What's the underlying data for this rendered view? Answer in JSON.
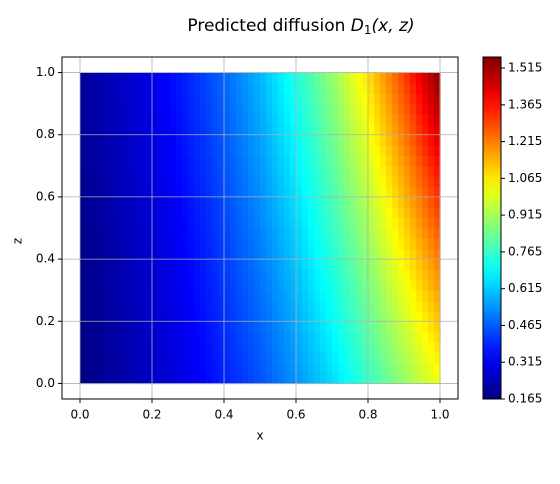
{
  "chart_data": {
    "type": "heatmap",
    "title_prefix": "Predicted diffusion ",
    "title_math": {
      "symbol": "D",
      "subscript": "1",
      "args": "(x, z)"
    },
    "xlabel": "x",
    "ylabel": "z",
    "xlim": [
      -0.05,
      1.05
    ],
    "ylim": [
      -0.05,
      1.05
    ],
    "x_ticks": [
      0.0,
      0.2,
      0.4,
      0.6,
      0.8,
      1.0
    ],
    "y_ticks": [
      0.0,
      0.2,
      0.4,
      0.6,
      0.8,
      1.0
    ],
    "x_tick_labels": [
      "0.0",
      "0.2",
      "0.4",
      "0.6",
      "0.8",
      "1.0"
    ],
    "y_tick_labels": [
      "0.0",
      "0.2",
      "0.4",
      "0.6",
      "0.8",
      "1.0"
    ],
    "grid": true,
    "data_domain": {
      "x": [
        0.0,
        1.0
      ],
      "z": [
        0.0,
        1.0
      ]
    },
    "colorbar": {
      "colormap": "jet",
      "vmin": 0.165,
      "vmax": 1.56,
      "ticks": [
        0.165,
        0.315,
        0.465,
        0.615,
        0.765,
        0.915,
        1.065,
        1.215,
        1.365,
        1.515
      ],
      "tick_labels": [
        "0.165",
        "0.315",
        "0.465",
        "0.615",
        "0.765",
        "0.915",
        "1.065",
        "1.215",
        "1.365",
        "1.515"
      ],
      "placement": "right"
    },
    "field_samples": {
      "x": [
        0.0,
        0.1,
        0.2,
        0.3,
        0.4,
        0.5,
        0.6,
        0.7,
        0.8,
        0.9,
        1.0
      ],
      "z": [
        0.0,
        0.5,
        1.0
      ],
      "values": [
        [
          0.17,
          0.21,
          0.26,
          0.31,
          0.38,
          0.45,
          0.54,
          0.64,
          0.76,
          0.89,
          1.02
        ],
        [
          0.18,
          0.23,
          0.28,
          0.35,
          0.43,
          0.52,
          0.63,
          0.76,
          0.91,
          1.09,
          1.27
        ],
        [
          0.2,
          0.25,
          0.31,
          0.39,
          0.48,
          0.59,
          0.73,
          0.89,
          1.08,
          1.3,
          1.55
        ]
      ]
    }
  }
}
